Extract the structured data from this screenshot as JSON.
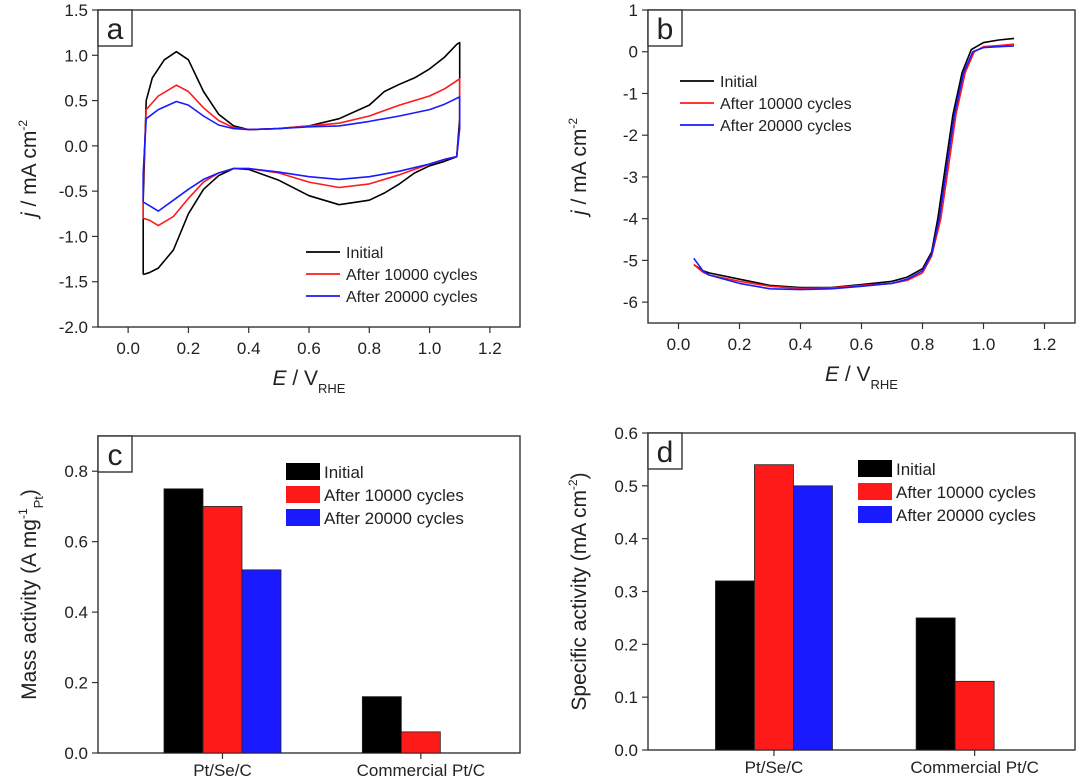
{
  "colors": {
    "initial": "#000000",
    "after10000": "#ff1a1a",
    "after20000": "#1a1aff"
  },
  "chart_data": [
    {
      "panel": "a",
      "type": "line",
      "xlabel_italic": "E",
      "xlabel_rest": " / V",
      "xlabel_sub": "RHE",
      "ylabel_italic": "j",
      "ylabel_rest": " / mA cm",
      "ylabel_sup": "-2",
      "xlim": [
        -0.1,
        1.3
      ],
      "ylim": [
        -2.0,
        1.5
      ],
      "xticks": [
        "0.0",
        "0.2",
        "0.4",
        "0.6",
        "0.8",
        "1.0",
        "1.2"
      ],
      "xtick_values": [
        0.0,
        0.2,
        0.4,
        0.6,
        0.8,
        1.0,
        1.2
      ],
      "yticks": [
        "-2.0",
        "-1.5",
        "-1.0",
        "-0.5",
        "0.0",
        "0.5",
        "1.0",
        "1.5"
      ],
      "ytick_values": [
        -2.0,
        -1.5,
        -1.0,
        -0.5,
        0.0,
        0.5,
        1.0,
        1.5
      ],
      "legend": [
        "Initial",
        "After 10000 cycles",
        "After 20000 cycles"
      ],
      "series": [
        {
          "name": "Initial",
          "color_key": "initial",
          "points": [
            [
              0.05,
              -1.42
            ],
            [
              0.05,
              -0.6
            ],
            [
              0.06,
              0.5
            ],
            [
              0.08,
              0.75
            ],
            [
              0.12,
              0.95
            ],
            [
              0.16,
              1.04
            ],
            [
              0.2,
              0.95
            ],
            [
              0.25,
              0.6
            ],
            [
              0.3,
              0.35
            ],
            [
              0.35,
              0.22
            ],
            [
              0.4,
              0.18
            ],
            [
              0.5,
              0.19
            ],
            [
              0.6,
              0.22
            ],
            [
              0.7,
              0.3
            ],
            [
              0.8,
              0.45
            ],
            [
              0.85,
              0.6
            ],
            [
              0.9,
              0.68
            ],
            [
              0.95,
              0.75
            ],
            [
              1.0,
              0.85
            ],
            [
              1.05,
              0.98
            ],
            [
              1.09,
              1.12
            ],
            [
              1.1,
              1.14
            ],
            [
              1.1,
              0.3
            ],
            [
              1.09,
              -0.12
            ],
            [
              1.05,
              -0.17
            ],
            [
              1.0,
              -0.22
            ],
            [
              0.95,
              -0.3
            ],
            [
              0.9,
              -0.42
            ],
            [
              0.85,
              -0.52
            ],
            [
              0.8,
              -0.6
            ],
            [
              0.7,
              -0.65
            ],
            [
              0.6,
              -0.55
            ],
            [
              0.5,
              -0.38
            ],
            [
              0.4,
              -0.26
            ],
            [
              0.35,
              -0.25
            ],
            [
              0.3,
              -0.33
            ],
            [
              0.25,
              -0.48
            ],
            [
              0.2,
              -0.75
            ],
            [
              0.15,
              -1.15
            ],
            [
              0.1,
              -1.35
            ],
            [
              0.07,
              -1.4
            ],
            [
              0.05,
              -1.42
            ]
          ]
        },
        {
          "name": "After 10000 cycles",
          "color_key": "after10000",
          "points": [
            [
              0.05,
              -0.8
            ],
            [
              0.05,
              -0.4
            ],
            [
              0.06,
              0.4
            ],
            [
              0.1,
              0.55
            ],
            [
              0.16,
              0.67
            ],
            [
              0.2,
              0.6
            ],
            [
              0.25,
              0.42
            ],
            [
              0.3,
              0.28
            ],
            [
              0.35,
              0.2
            ],
            [
              0.4,
              0.18
            ],
            [
              0.5,
              0.19
            ],
            [
              0.6,
              0.22
            ],
            [
              0.7,
              0.25
            ],
            [
              0.8,
              0.33
            ],
            [
              0.9,
              0.45
            ],
            [
              1.0,
              0.55
            ],
            [
              1.05,
              0.63
            ],
            [
              1.1,
              0.74
            ],
            [
              1.1,
              0.2
            ],
            [
              1.09,
              -0.12
            ],
            [
              1.05,
              -0.15
            ],
            [
              1.0,
              -0.2
            ],
            [
              0.9,
              -0.32
            ],
            [
              0.8,
              -0.42
            ],
            [
              0.7,
              -0.46
            ],
            [
              0.6,
              -0.4
            ],
            [
              0.5,
              -0.3
            ],
            [
              0.4,
              -0.25
            ],
            [
              0.35,
              -0.25
            ],
            [
              0.3,
              -0.3
            ],
            [
              0.25,
              -0.4
            ],
            [
              0.2,
              -0.58
            ],
            [
              0.15,
              -0.78
            ],
            [
              0.1,
              -0.88
            ],
            [
              0.07,
              -0.82
            ],
            [
              0.05,
              -0.8
            ]
          ]
        },
        {
          "name": "After 20000 cycles",
          "color_key": "after20000",
          "points": [
            [
              0.05,
              -0.62
            ],
            [
              0.05,
              -0.3
            ],
            [
              0.06,
              0.3
            ],
            [
              0.1,
              0.4
            ],
            [
              0.16,
              0.49
            ],
            [
              0.2,
              0.45
            ],
            [
              0.25,
              0.33
            ],
            [
              0.3,
              0.23
            ],
            [
              0.35,
              0.19
            ],
            [
              0.4,
              0.18
            ],
            [
              0.5,
              0.19
            ],
            [
              0.6,
              0.21
            ],
            [
              0.7,
              0.22
            ],
            [
              0.8,
              0.27
            ],
            [
              0.9,
              0.33
            ],
            [
              1.0,
              0.4
            ],
            [
              1.05,
              0.46
            ],
            [
              1.1,
              0.54
            ],
            [
              1.1,
              0.2
            ],
            [
              1.09,
              -0.12
            ],
            [
              1.05,
              -0.15
            ],
            [
              1.0,
              -0.2
            ],
            [
              0.9,
              -0.28
            ],
            [
              0.8,
              -0.34
            ],
            [
              0.7,
              -0.37
            ],
            [
              0.6,
              -0.34
            ],
            [
              0.5,
              -0.29
            ],
            [
              0.4,
              -0.25
            ],
            [
              0.35,
              -0.25
            ],
            [
              0.3,
              -0.3
            ],
            [
              0.25,
              -0.37
            ],
            [
              0.2,
              -0.48
            ],
            [
              0.15,
              -0.6
            ],
            [
              0.1,
              -0.72
            ],
            [
              0.07,
              -0.66
            ],
            [
              0.05,
              -0.62
            ]
          ]
        }
      ]
    },
    {
      "panel": "b",
      "type": "line",
      "xlabel_italic": "E",
      "xlabel_rest": " / V",
      "xlabel_sub": "RHE",
      "ylabel_italic": "j",
      "ylabel_rest": " / mA cm",
      "ylabel_sup": "-2",
      "xlim": [
        -0.1,
        1.3
      ],
      "ylim": [
        -6.5,
        1.0
      ],
      "xticks": [
        "0.0",
        "0.2",
        "0.4",
        "0.6",
        "0.8",
        "1.0",
        "1.2"
      ],
      "xtick_values": [
        0.0,
        0.2,
        0.4,
        0.6,
        0.8,
        1.0,
        1.2
      ],
      "yticks": [
        "-6",
        "-5",
        "-4",
        "-3",
        "-2",
        "-1",
        "0",
        "1"
      ],
      "ytick_values": [
        -6,
        -5,
        -4,
        -3,
        -2,
        -1,
        0,
        1
      ],
      "legend": [
        "Initial",
        "After 10000 cycles",
        "After 20000 cycles"
      ],
      "series": [
        {
          "name": "Initial",
          "color_key": "initial",
          "points": [
            [
              0.05,
              -5.1
            ],
            [
              0.08,
              -5.25
            ],
            [
              0.1,
              -5.3
            ],
            [
              0.2,
              -5.45
            ],
            [
              0.3,
              -5.6
            ],
            [
              0.4,
              -5.65
            ],
            [
              0.5,
              -5.65
            ],
            [
              0.6,
              -5.58
            ],
            [
              0.7,
              -5.5
            ],
            [
              0.75,
              -5.4
            ],
            [
              0.8,
              -5.2
            ],
            [
              0.83,
              -4.8
            ],
            [
              0.85,
              -4.0
            ],
            [
              0.88,
              -2.5
            ],
            [
              0.9,
              -1.5
            ],
            [
              0.93,
              -0.5
            ],
            [
              0.96,
              0.05
            ],
            [
              1.0,
              0.22
            ],
            [
              1.05,
              0.28
            ],
            [
              1.1,
              0.32
            ]
          ]
        },
        {
          "name": "After 10000 cycles",
          "color_key": "after10000",
          "points": [
            [
              0.05,
              -5.1
            ],
            [
              0.08,
              -5.28
            ],
            [
              0.1,
              -5.35
            ],
            [
              0.2,
              -5.5
            ],
            [
              0.3,
              -5.62
            ],
            [
              0.4,
              -5.67
            ],
            [
              0.5,
              -5.66
            ],
            [
              0.6,
              -5.6
            ],
            [
              0.7,
              -5.55
            ],
            [
              0.75,
              -5.48
            ],
            [
              0.8,
              -5.3
            ],
            [
              0.83,
              -4.9
            ],
            [
              0.86,
              -4.0
            ],
            [
              0.89,
              -2.5
            ],
            [
              0.91,
              -1.5
            ],
            [
              0.94,
              -0.5
            ],
            [
              0.97,
              0.0
            ],
            [
              1.0,
              0.12
            ],
            [
              1.05,
              0.15
            ],
            [
              1.1,
              0.18
            ]
          ]
        },
        {
          "name": "After 20000 cycles",
          "color_key": "after20000",
          "points": [
            [
              0.05,
              -4.95
            ],
            [
              0.08,
              -5.25
            ],
            [
              0.1,
              -5.35
            ],
            [
              0.2,
              -5.55
            ],
            [
              0.3,
              -5.68
            ],
            [
              0.4,
              -5.7
            ],
            [
              0.5,
              -5.68
            ],
            [
              0.6,
              -5.62
            ],
            [
              0.7,
              -5.55
            ],
            [
              0.75,
              -5.45
            ],
            [
              0.8,
              -5.25
            ],
            [
              0.83,
              -4.85
            ],
            [
              0.855,
              -4.0
            ],
            [
              0.885,
              -2.5
            ],
            [
              0.905,
              -1.5
            ],
            [
              0.935,
              -0.5
            ],
            [
              0.965,
              0.0
            ],
            [
              1.0,
              0.1
            ],
            [
              1.05,
              0.12
            ],
            [
              1.1,
              0.14
            ]
          ]
        }
      ]
    },
    {
      "panel": "c",
      "type": "bar",
      "ylabel": "Mass activity (A mg",
      "ylabel_sup": "-1",
      "ylabel_sub": "Pt",
      "ylabel_close": ")",
      "ylim": [
        0.0,
        0.9
      ],
      "yticks": [
        "0.0",
        "0.2",
        "0.4",
        "0.6",
        "0.8"
      ],
      "ytick_values": [
        0.0,
        0.2,
        0.4,
        0.6,
        0.8
      ],
      "categories": [
        "Pt/Se/C",
        "Commercial Pt/C"
      ],
      "legend": [
        "Initial",
        "After 10000 cycles",
        "After 20000 cycles"
      ],
      "series": [
        {
          "name": "Initial",
          "color_key": "initial",
          "values": [
            0.75,
            0.16
          ]
        },
        {
          "name": "After 10000 cycles",
          "color_key": "after10000",
          "values": [
            0.7,
            0.06
          ]
        },
        {
          "name": "After 20000 cycles",
          "color_key": "after20000",
          "values": [
            0.52,
            null
          ]
        }
      ]
    },
    {
      "panel": "d",
      "type": "bar",
      "ylabel": "Specific activity (mA cm",
      "ylabel_sup": "-2",
      "ylabel_close": ")",
      "ylim": [
        0.0,
        0.6
      ],
      "yticks": [
        "0.0",
        "0.1",
        "0.2",
        "0.3",
        "0.4",
        "0.5",
        "0.6"
      ],
      "ytick_values": [
        0.0,
        0.1,
        0.2,
        0.3,
        0.4,
        0.5,
        0.6
      ],
      "categories": [
        "Pt/Se/C",
        "Commercial Pt/C"
      ],
      "legend": [
        "Initial",
        "After 10000 cycles",
        "After 20000 cycles"
      ],
      "series": [
        {
          "name": "Initial",
          "color_key": "initial",
          "values": [
            0.32,
            0.25
          ]
        },
        {
          "name": "After 10000 cycles",
          "color_key": "after10000",
          "values": [
            0.54,
            0.13
          ]
        },
        {
          "name": "After 20000 cycles",
          "color_key": "after20000",
          "values": [
            0.5,
            null
          ]
        }
      ]
    }
  ]
}
